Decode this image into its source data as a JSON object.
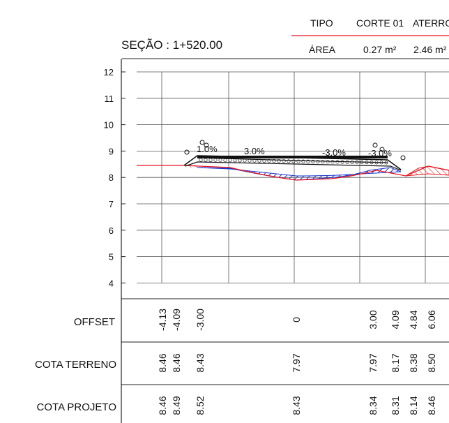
{
  "header": {
    "tipo_label": "TIPO",
    "corte_label": "CORTE 01",
    "aterro_label": "ATERRO",
    "area_label": "ÁREA",
    "corte_area": "0.27 m²",
    "aterro_area": "2.46 m²"
  },
  "section_title": "SEÇÃO : 1+520.00",
  "y_axis": {
    "ticks": [
      "12",
      "11",
      "10",
      "9",
      "8",
      "7",
      "6",
      "5",
      "4"
    ]
  },
  "annotations": {
    "slope_left": "1.0%",
    "slope_mid_left": "3.0%",
    "slope_mid_right": "-3.0%",
    "slope_right": "-3.0%"
  },
  "table": {
    "rows": [
      {
        "label": "OFFSET",
        "values": [
          "-4.13",
          "-4.09",
          "-3.00",
          "0",
          "3.00",
          "4.09",
          "4.84",
          "6.06"
        ]
      },
      {
        "label": "COTA TERRENO",
        "values": [
          "8.46",
          "8.46",
          "8.43",
          "7.97",
          "7.97",
          "8.17",
          "8.38",
          "8.50"
        ]
      },
      {
        "label": "COTA PROJETO",
        "values": [
          "8.46",
          "8.49",
          "8.52",
          "8.43",
          "8.34",
          "8.31",
          "8.14",
          "8.46"
        ]
      }
    ]
  },
  "colors": {
    "terrain": "#e8121b",
    "cut_hatch": "#1a36c8",
    "fill_hatch": "#e8121b",
    "road": "#111111",
    "grid": "#444444"
  }
}
